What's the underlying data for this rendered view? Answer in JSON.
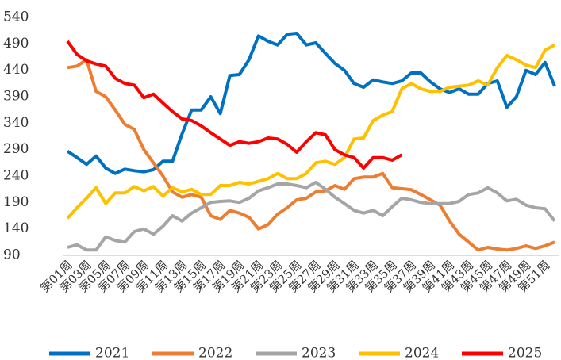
{
  "chart_data": {
    "type": "line",
    "categories": [
      "第01周",
      null,
      "第03周",
      null,
      "第05周",
      null,
      "第07周",
      null,
      "第09周",
      null,
      "第11周",
      null,
      "第13周",
      null,
      "第15周",
      null,
      "第17周",
      null,
      "第19周",
      null,
      "第21周",
      null,
      "第23周",
      null,
      "第25周",
      null,
      "第27周",
      null,
      "第29周",
      null,
      "第31周",
      null,
      "第33周",
      null,
      "第35周",
      null,
      "第37周",
      null,
      "第39周",
      null,
      "第41周",
      null,
      "第43周",
      null,
      "第45周",
      null,
      "第47周",
      null,
      "第49周",
      null,
      "第51周",
      null
    ],
    "series": [
      {
        "name": "2021",
        "color": "#0070c0",
        "values": [
          287,
          275,
          262,
          278,
          255,
          245,
          253,
          250,
          248,
          252,
          268,
          268,
          320,
          365,
          365,
          390,
          358,
          430,
          432,
          460,
          505,
          495,
          488,
          508,
          510,
          488,
          492,
          472,
          453,
          440,
          415,
          408,
          422,
          418,
          415,
          420,
          435,
          435,
          418,
          405,
          398,
          405,
          395,
          395,
          415,
          420,
          370,
          390,
          440,
          432,
          455,
          410
        ]
      },
      {
        "name": "2022",
        "color": "#ed7d31",
        "values": [
          445,
          448,
          460,
          400,
          390,
          365,
          338,
          328,
          290,
          265,
          240,
          210,
          200,
          205,
          200,
          165,
          158,
          175,
          170,
          162,
          140,
          148,
          168,
          180,
          195,
          198,
          210,
          212,
          222,
          215,
          235,
          238,
          238,
          245,
          218,
          216,
          214,
          205,
          195,
          185,
          155,
          130,
          115,
          100,
          105,
          102,
          100,
          103,
          108,
          103,
          108,
          115
        ]
      },
      {
        "name": "2023",
        "color": "#a5a5a5",
        "values": [
          105,
          110,
          100,
          100,
          125,
          118,
          115,
          135,
          140,
          130,
          145,
          165,
          155,
          170,
          180,
          190,
          192,
          193,
          190,
          198,
          212,
          218,
          225,
          225,
          222,
          218,
          228,
          215,
          200,
          188,
          175,
          170,
          175,
          165,
          182,
          198,
          195,
          190,
          188,
          188,
          188,
          192,
          205,
          208,
          218,
          208,
          193,
          196,
          185,
          180,
          178,
          155
        ]
      },
      {
        "name": "2024",
        "color": "#ffc000",
        "values": [
          160,
          180,
          198,
          218,
          188,
          208,
          208,
          220,
          212,
          220,
          202,
          218,
          210,
          215,
          205,
          205,
          222,
          222,
          228,
          225,
          230,
          235,
          245,
          235,
          235,
          245,
          265,
          268,
          262,
          275,
          310,
          312,
          345,
          355,
          362,
          405,
          415,
          405,
          400,
          400,
          408,
          410,
          412,
          420,
          412,
          445,
          468,
          460,
          450,
          445,
          478,
          488
        ]
      },
      {
        "name": "2025",
        "color": "#ff0000",
        "values": [
          495,
          470,
          458,
          452,
          448,
          425,
          415,
          412,
          388,
          395,
          378,
          362,
          348,
          345,
          335,
          322,
          310,
          298,
          305,
          302,
          305,
          312,
          310,
          300,
          285,
          305,
          322,
          318,
          290,
          280,
          275,
          255,
          275,
          275,
          270,
          280,
          null,
          null,
          null,
          null,
          null,
          null,
          null,
          null,
          null,
          null,
          null,
          null,
          null,
          null,
          null,
          null
        ]
      }
    ],
    "ylim": [
      90,
      540
    ],
    "yticks": [
      90,
      140,
      190,
      240,
      290,
      340,
      390,
      440,
      490,
      540
    ],
    "grid": false,
    "legend": "bottom"
  }
}
